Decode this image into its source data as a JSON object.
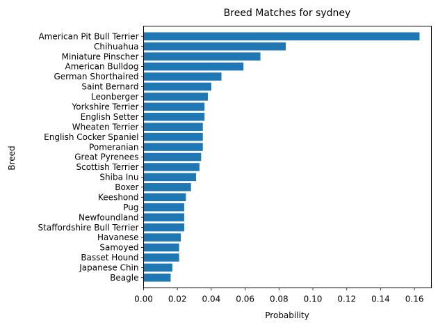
{
  "chart_data": {
    "type": "bar",
    "orientation": "horizontal",
    "title": "Breed Matches for sydney",
    "xlabel": "Probability",
    "ylabel": "Breed",
    "xlim": [
      0,
      0.17
    ],
    "xticks": [
      "0.00",
      "0.02",
      "0.04",
      "0.06",
      "0.08",
      "0.10",
      "0.12",
      "0.14",
      "0.16"
    ],
    "grid": false,
    "legend": "none",
    "bar_color": "#1f77b4",
    "categories": [
      "American Pit Bull Terrier",
      "Chihuahua",
      "Miniature Pinscher",
      "American Bulldog",
      "German Shorthaired",
      "Saint Bernard",
      "Leonberger",
      "Yorkshire Terrier",
      "English Setter",
      "Wheaten Terrier",
      "English Cocker Spaniel",
      "Pomeranian",
      "Great Pyrenees",
      "Scottish Terrier",
      "Shiba Inu",
      "Boxer",
      "Keeshond",
      "Pug",
      "Newfoundland",
      "Staffordshire Bull Terrier",
      "Havanese",
      "Samoyed",
      "Basset Hound",
      "Japanese Chin",
      "Beagle"
    ],
    "values": [
      0.163,
      0.084,
      0.069,
      0.059,
      0.046,
      0.04,
      0.038,
      0.036,
      0.036,
      0.035,
      0.035,
      0.035,
      0.034,
      0.033,
      0.031,
      0.028,
      0.025,
      0.024,
      0.024,
      0.024,
      0.022,
      0.021,
      0.021,
      0.017,
      0.016
    ]
  }
}
